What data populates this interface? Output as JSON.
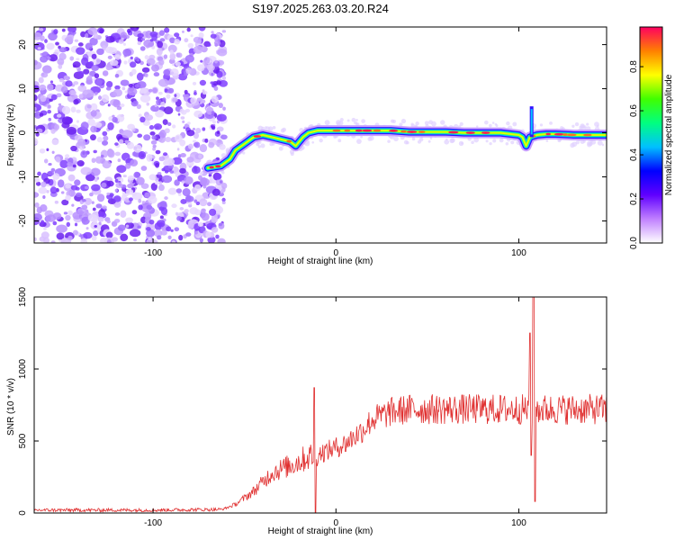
{
  "title": "S197.2025.263.03.20.R24",
  "chart_data": [
    {
      "type": "heatmap",
      "xlabel": "Height of straight line (km)",
      "ylabel": "Frequency (Hz)",
      "xlim": [
        -165,
        148
      ],
      "ylim": [
        -25,
        24
      ],
      "xticks": [
        -100,
        0,
        100
      ],
      "yticks": [
        -20,
        -10,
        0,
        10,
        20
      ],
      "colorbar": {
        "label": "Normalized spectral amplitude",
        "ticks": [
          "0.0",
          "0.2",
          "0.4",
          "0.6",
          "0.8"
        ],
        "tick_values": [
          0.0,
          0.2,
          0.4,
          0.6,
          0.8
        ],
        "range": [
          0,
          0.98
        ],
        "colormap": [
          "#ffffff",
          "#c080ff",
          "#6000ff",
          "#0000ff",
          "#00c0ff",
          "#00ff80",
          "#40ff00",
          "#ffff00",
          "#ff8000",
          "#ff0060"
        ]
      },
      "noise_region": [
        -165,
        -65
      ],
      "ridge": {
        "x": [
          -70,
          -63,
          -58,
          -55,
          -50,
          -45,
          -40,
          -35,
          -30,
          -25,
          -22,
          -20,
          -18,
          -15,
          -10,
          -7,
          0,
          10,
          20,
          30,
          40,
          50,
          60,
          70,
          80,
          90,
          100,
          102,
          104,
          106,
          110,
          115,
          120,
          130,
          148
        ],
        "y": [
          -8,
          -7.5,
          -6,
          -4,
          -2.5,
          -1,
          -0.5,
          -1,
          -1.5,
          -2,
          -3,
          -2,
          -1,
          0,
          0.5,
          0.5,
          0.5,
          0.5,
          0.5,
          0.5,
          0.2,
          0.2,
          0.2,
          0,
          0,
          0,
          -0.5,
          -1,
          -3,
          -1,
          -0.5,
          -0.3,
          -0.3,
          -0.5,
          -0.5
        ]
      },
      "spike": {
        "x": 107,
        "y": [
          -1,
          6
        ]
      }
    },
    {
      "type": "line",
      "xlabel": "Height of straight line (km)",
      "ylabel": "SNR (10 * v/v)",
      "xlim": [
        -165,
        148
      ],
      "ylim": [
        0,
        1500
      ],
      "xticks": [
        -100,
        0,
        100
      ],
      "yticks": [
        0,
        500,
        1000,
        1500
      ],
      "color": "#e03030",
      "envelope": {
        "x": [
          -165,
          -100,
          -62,
          -55,
          -45,
          -35,
          -25,
          -15,
          -5,
          5,
          15,
          20,
          30,
          40,
          60,
          80,
          100,
          110,
          120,
          148
        ],
        "y": [
          20,
          20,
          25,
          60,
          150,
          280,
          330,
          390,
          430,
          480,
          580,
          650,
          700,
          720,
          720,
          720,
          720,
          720,
          720,
          720
        ]
      },
      "spikes": [
        {
          "x": -12,
          "peak": 870,
          "trough": 0
        },
        {
          "x": 106,
          "peak": 1250,
          "trough": 400
        },
        {
          "x": 108,
          "peak": 1500,
          "trough": 80
        }
      ]
    }
  ]
}
